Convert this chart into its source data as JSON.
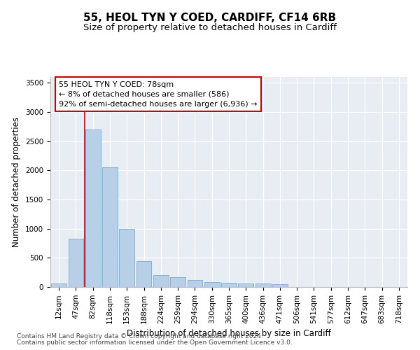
{
  "title1": "55, HEOL TYN Y COED, CARDIFF, CF14 6RB",
  "title2": "Size of property relative to detached houses in Cardiff",
  "xlabel": "Distribution of detached houses by size in Cardiff",
  "ylabel": "Number of detached properties",
  "categories": [
    "12sqm",
    "47sqm",
    "82sqm",
    "118sqm",
    "153sqm",
    "188sqm",
    "224sqm",
    "259sqm",
    "294sqm",
    "330sqm",
    "365sqm",
    "400sqm",
    "436sqm",
    "471sqm",
    "506sqm",
    "541sqm",
    "577sqm",
    "612sqm",
    "647sqm",
    "683sqm",
    "718sqm"
  ],
  "values": [
    55,
    830,
    2700,
    2050,
    1000,
    450,
    200,
    170,
    120,
    90,
    75,
    60,
    55,
    50,
    0,
    0,
    0,
    0,
    0,
    0,
    0
  ],
  "bar_color": "#b8cfe8",
  "bar_edge_color": "#7aaad0",
  "highlight_color": "#cc0000",
  "annotation_line1": "55 HEOL TYN Y COED: 78sqm",
  "annotation_line2": "← 8% of detached houses are smaller (586)",
  "annotation_line3": "92% of semi-detached houses are larger (6,936) →",
  "annotation_box_color": "#ffffff",
  "annotation_box_edge": "#cc0000",
  "ylim": [
    0,
    3600
  ],
  "yticks": [
    0,
    500,
    1000,
    1500,
    2000,
    2500,
    3000,
    3500
  ],
  "bg_color": "#e8edf4",
  "footer1": "Contains HM Land Registry data © Crown copyright and database right 2024.",
  "footer2": "Contains public sector information licensed under the Open Government Licence v3.0.",
  "title1_fontsize": 11,
  "title2_fontsize": 9.5,
  "axis_label_fontsize": 8.5,
  "tick_fontsize": 7.5,
  "annotation_fontsize": 8,
  "footer_fontsize": 6.5,
  "red_line_x": 1.5
}
